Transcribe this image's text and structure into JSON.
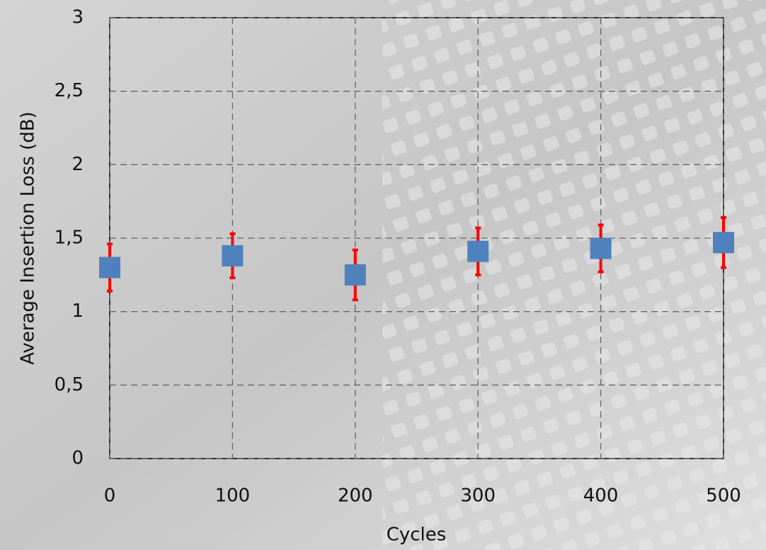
{
  "chart_data": {
    "type": "scatter",
    "x_label": "Cycles",
    "y_label": "Average Insertion Loss (dB)",
    "x": [
      0,
      100,
      200,
      300,
      400,
      500
    ],
    "series": [
      {
        "color": "#4f81bd",
        "error_color": "#ff0000",
        "values": [
          1.3,
          1.38,
          1.25,
          1.41,
          1.43,
          1.47
        ],
        "errors": [
          0.16,
          0.15,
          0.17,
          0.16,
          0.16,
          0.17
        ]
      }
    ],
    "xlim": [
      0,
      500
    ],
    "xticks": [
      0,
      100,
      200,
      300,
      400,
      500
    ],
    "ylim": [
      0,
      3
    ],
    "yticks": [
      0,
      {
        "value": 0.5,
        "label": "0,5"
      },
      1,
      {
        "value": 1.5,
        "label": "1,5"
      },
      2,
      {
        "value": 2.5,
        "label": "2,5"
      },
      3
    ],
    "grid": true
  }
}
